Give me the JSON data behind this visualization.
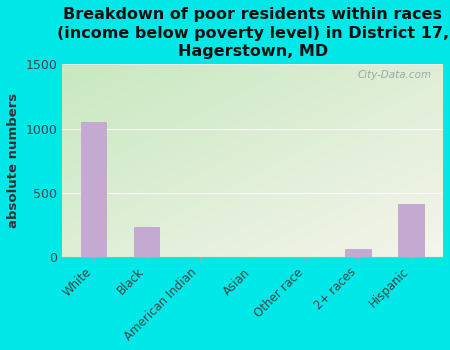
{
  "title": "Breakdown of poor residents within races\n(income below poverty level) in District 17,\nHagerstown, MD",
  "categories": [
    "White",
    "Black",
    "American Indian",
    "Asian",
    "Other race",
    "2+ races",
    "Hispanic"
  ],
  "values": [
    1050,
    230,
    0,
    0,
    0,
    60,
    410
  ],
  "bar_color": "#c4aad0",
  "ylabel": "absolute numbers",
  "ylim": [
    0,
    1500
  ],
  "yticks": [
    0,
    500,
    1000,
    1500
  ],
  "background_outer": "#00e8e8",
  "background_plot_top_left": "#c8e8c0",
  "background_plot_bottom_right": "#f5f5ec",
  "title_fontsize": 11.5,
  "watermark": "City-Data.com"
}
